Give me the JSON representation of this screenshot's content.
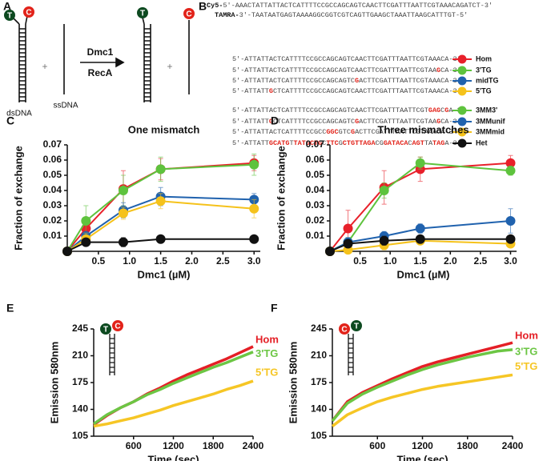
{
  "panel_a": {
    "label": "A",
    "ds_top": "T",
    "ds_bottom": "C",
    "plus": "+",
    "ssdna": "ssDNA",
    "dsdna": "dsDNA",
    "protein_1": "Dmc1",
    "protein_2": "RecA",
    "product_ds": "T",
    "product_plus": "+",
    "product_ss": "C"
  },
  "panel_b": {
    "label": "B",
    "top_strand": [
      "Cy5-",
      "5'-AAACTATTATTACTCATTTTCCGCCAGCAGTCAACTTCGATTTAATTCGTAAACAGATCT-3'"
    ],
    "bottom_strand": [
      "TAMRA-",
      "3'-TAATAATGAGTAAAAGGCGGTCGTCAGTTGAAGCTAAATTAAGCATTTGT-5'"
    ],
    "sequences": [
      [
        "5'-ATTATTACTCATTTTCCGCCAGCAGTCAACTTCGATTTAATTCGTAAACA-3'"
      ],
      [
        "5'-ATTATTACTCATTTTCCGCCAGCAGTCAACTTCGATTTAATTCGTAA",
        "G",
        "CA-3'"
      ],
      [
        "5'-ATTATTACTCATTTTCCGCCAGCAGTC",
        "G",
        "ACTTCGATTTAATTCGTAAACA-3'"
      ],
      [
        "5'-ATTATT",
        "G",
        "CTCATTTTCCGCCAGCAGTCAACTTCGATTTAATTCGTAAACA-3'"
      ],
      [
        "5'-ATTATTACTCATTTTCCGCCAGCAGTCAACTTCGATTTAATTCGT",
        "GAG",
        "C",
        "G",
        "A-3'"
      ],
      [
        "5'-ATTATT",
        "G",
        "CTCATTTTCCGCCAGCAGTC",
        "G",
        "ACTTCGATTTAATTCGTAA",
        "G",
        "CA-3'"
      ],
      [
        "5'-ATTATTACTCATTTTCCGCC",
        "GGC",
        "GTC",
        "G",
        "ACTTCGATTTAATTCGTAAACA-3'"
      ],
      [
        "5'-ATTATT",
        "GCATG",
        "T",
        "TATGCTG",
        "C",
        "TTC",
        "G",
        "CTGTTAGA",
        "CG",
        "GATACA",
        "C",
        "AGT",
        "TA",
        "TAG",
        "A-3'"
      ]
    ]
  },
  "chart_data": [
    {
      "type": "line",
      "panel": "C",
      "title": "One mismatch",
      "xlabel": "Dmc1 (µM)",
      "ylabel": "Fraction of exchange",
      "markers": true,
      "x": [
        0,
        0.3,
        0.9,
        1.5,
        3.0
      ],
      "series": [
        {
          "name": "Hom",
          "color": "#e8202a",
          "values": [
            0,
            0.015,
            0.041,
            0.054,
            0.058
          ],
          "errors": [
            0,
            0.007,
            0.012,
            0.007,
            0.005
          ]
        },
        {
          "name": "3'TG",
          "color": "#5ec33d",
          "values": [
            0,
            0.02,
            0.04,
            0.054,
            0.057
          ],
          "errors": [
            0,
            0.01,
            0.01,
            0.008,
            0.007
          ]
        },
        {
          "name": "midTG",
          "color": "#2062ae",
          "values": [
            0,
            0.01,
            0.027,
            0.036,
            0.034
          ],
          "errors": [
            0,
            0.003,
            0.005,
            0.006,
            0.004
          ]
        },
        {
          "name": "5'TG",
          "color": "#f5c21b",
          "values": [
            0,
            0.008,
            0.025,
            0.033,
            0.028
          ],
          "errors": [
            0,
            0.004,
            0.004,
            0.005,
            0.006
          ]
        },
        {
          "name": "Het",
          "color": "#111111",
          "values": [
            0,
            0.006,
            0.006,
            0.008,
            0.008
          ],
          "errors": [
            0,
            0.002,
            0.003,
            0.002,
            0.001
          ]
        }
      ],
      "xlim": [
        0,
        3.1
      ],
      "xticks": [
        0.5,
        {
          "value": 1,
          "label": "1.0"
        },
        1.5,
        {
          "value": 2,
          "label": "2.0"
        },
        2.5,
        {
          "value": 3,
          "label": "3.0"
        }
      ],
      "ylim": [
        0,
        0.07
      ],
      "yticks": [
        0.01,
        0.02,
        0.03,
        0.04,
        0.05,
        0.06,
        0.07
      ]
    },
    {
      "type": "line",
      "panel": "D",
      "title": "Three mismatches",
      "xlabel": "Dmc1 (µM)",
      "ylabel": "Fraction of exchange",
      "markers": true,
      "x": [
        0,
        0.3,
        0.9,
        1.5,
        3.0
      ],
      "series": [
        {
          "name": "Hom",
          "color": "#e8202a",
          "values": [
            0,
            0.015,
            0.042,
            0.054,
            0.058
          ],
          "errors": [
            0,
            0.012,
            0.011,
            0.008,
            0.005
          ]
        },
        {
          "name": "3MM3'",
          "color": "#5ec33d",
          "values": [
            0,
            0.006,
            0.04,
            0.058,
            0.053
          ],
          "errors": [
            0,
            0.003,
            0.005,
            0.004,
            0.003
          ]
        },
        {
          "name": "3MMunif",
          "color": "#2062ae",
          "values": [
            0,
            0.006,
            0.01,
            0.015,
            0.02
          ],
          "errors": [
            0,
            0.003,
            0.003,
            0.003,
            0.008
          ]
        },
        {
          "name": "3MMmid",
          "color": "#f5c21b",
          "values": [
            0,
            0.001,
            0.004,
            0.007,
            0.005
          ],
          "errors": [
            0,
            0.001,
            0.003,
            0.002,
            0.002
          ]
        },
        {
          "name": "Het",
          "color": "#111111",
          "values": [
            0,
            0.005,
            0.007,
            0.008,
            0.008
          ],
          "errors": [
            0,
            0.002,
            0.003,
            0.002,
            0.001
          ]
        }
      ],
      "xlim": [
        0,
        3.1
      ],
      "xticks": [
        0.5,
        {
          "value": 1,
          "label": "1.0"
        },
        1.5,
        {
          "value": 2,
          "label": "2.0"
        },
        2.5,
        {
          "value": 3,
          "label": "3.0"
        }
      ],
      "ylim": [
        0,
        0.07
      ],
      "yticks": [
        0.01,
        0.02,
        0.03,
        0.04,
        0.05,
        0.06,
        0.07
      ]
    },
    {
      "type": "line",
      "panel": "E",
      "xlabel": "Time (sec)",
      "ylabel": "Emission 580nm",
      "markers": false,
      "end_labels": true,
      "inset": [
        {
          "text": "T",
          "color": "#0d4a20"
        },
        {
          "text": "C",
          "color": "#e2231a"
        }
      ],
      "x": [
        0,
        200,
        400,
        600,
        800,
        1000,
        1200,
        1400,
        1600,
        1800,
        2000,
        2200,
        2400
      ],
      "series": [
        {
          "name": "Hom",
          "color": "#e41f26",
          "values": [
            120,
            132,
            142,
            150,
            160,
            168,
            177,
            185,
            192,
            199,
            206,
            214,
            222
          ]
        },
        {
          "name": "3'TG",
          "color": "#6cc644",
          "values": [
            121,
            133,
            142,
            150,
            159,
            166,
            174,
            181,
            188,
            195,
            201,
            208,
            215
          ]
        },
        {
          "name": "5'TG",
          "color": "#f6c625",
          "values": [
            118,
            121,
            125,
            129,
            134,
            139,
            145,
            150,
            155,
            160,
            166,
            171,
            177
          ]
        }
      ],
      "xlim": [
        0,
        2400
      ],
      "xticks": [
        600,
        1200,
        1800,
        2400
      ],
      "ylim": [
        105,
        245
      ],
      "yticks": [
        105,
        140,
        175,
        210,
        245
      ]
    },
    {
      "type": "line",
      "panel": "F",
      "xlabel": "Time (sec)",
      "ylabel": "Emission 580nm",
      "markers": false,
      "end_labels": true,
      "inset": [
        {
          "text": "C",
          "color": "#e2231a"
        },
        {
          "text": "T",
          "color": "#0d4a20"
        }
      ],
      "x": [
        0,
        200,
        400,
        600,
        800,
        1000,
        1200,
        1400,
        1600,
        1800,
        2000,
        2200,
        2400
      ],
      "series": [
        {
          "name": "Hom",
          "color": "#e41f26",
          "values": [
            125,
            150,
            162,
            171,
            180,
            188,
            196,
            202,
            207,
            212,
            217,
            222,
            227
          ]
        },
        {
          "name": "3'TG",
          "color": "#6cc644",
          "values": [
            125,
            148,
            160,
            169,
            177,
            185,
            192,
            198,
            203,
            208,
            212,
            216,
            218
          ]
        },
        {
          "name": "5'TG",
          "color": "#f6c625",
          "values": [
            118,
            133,
            142,
            150,
            156,
            161,
            166,
            170,
            173,
            176,
            179,
            182,
            185
          ]
        }
      ],
      "xlim": [
        0,
        2400
      ],
      "xticks": [
        600,
        1200,
        1800,
        2400
      ],
      "ylim": [
        105,
        245
      ],
      "yticks": [
        105,
        140,
        175,
        210,
        245
      ]
    }
  ]
}
